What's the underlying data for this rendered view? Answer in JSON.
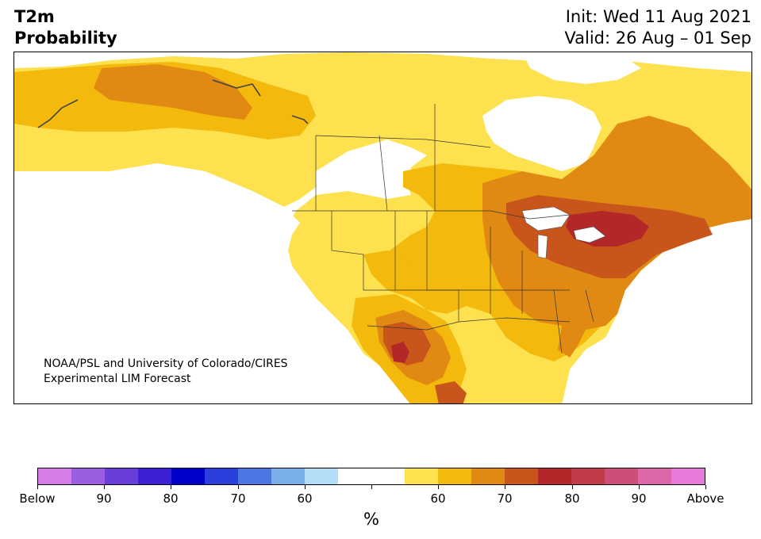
{
  "header": {
    "variable": "T2m",
    "product": "Probability",
    "init": "Init: Wed 11 Aug 2021",
    "valid": "Valid: 26 Aug – 01 Sep"
  },
  "credit": {
    "line1": "NOAA/PSL and University of Colorado/CIRES",
    "line2": "Experimental LIM Forecast"
  },
  "colorbar": {
    "unit": "%",
    "colors": [
      "#d57ce8",
      "#9b5ee0",
      "#6a3fd9",
      "#3d1fd6",
      "#0000cd",
      "#2a3fdc",
      "#4d76e2",
      "#7aaee8",
      "#b3dcf7",
      "#ffffff",
      "#ffffff",
      "#fde14e",
      "#f4b90d",
      "#e08a14",
      "#c8561a",
      "#b32728",
      "#c13a4a",
      "#cc4f78",
      "#dc67a8",
      "#e87ad9"
    ],
    "labels": [
      "Below",
      "90",
      "80",
      "70",
      "60",
      "",
      "60",
      "70",
      "80",
      "90",
      "Above"
    ]
  },
  "legend_colors": {
    "above_50_60": "#fde14e",
    "above_60_70": "#f4b90d",
    "above_70_80": "#e08a14",
    "above_80_90": "#c8561a",
    "above_90_100": "#b32728"
  }
}
